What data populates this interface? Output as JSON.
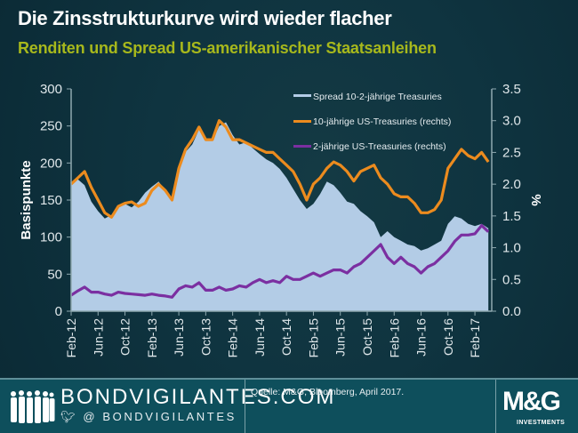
{
  "header": {
    "title": "Die Zinsstrukturkurve wird wieder flacher",
    "subtitle": "Renditen und Spread US-amerikanischer Staatsanleihen"
  },
  "colors": {
    "background": "#0d2f3a",
    "spread_fill": "#b3cce6",
    "ten_year": "#ec8b1e",
    "two_year": "#7b2fa1",
    "subtitle": "#a7b81c",
    "footer": "#0e4f5c"
  },
  "chart_data": {
    "type": "area",
    "title": "Die Zinsstrukturkurve wird wieder flacher",
    "subtitle": "Renditen und Spread US-amerikanischer Staatsanleihen",
    "xlabel": "",
    "ylabel": "Basispunkte",
    "y2label": "%",
    "ylim": [
      0,
      300
    ],
    "y2lim": [
      0,
      3.5
    ],
    "yticks": [
      "0",
      "50",
      "100",
      "150",
      "200",
      "250",
      "300"
    ],
    "y2ticks": [
      "0.0",
      "0.5",
      "1.0",
      "1.5",
      "2.0",
      "2.5",
      "3.0",
      "3.5"
    ],
    "xticks": [
      "Feb-12",
      "Jun-12",
      "Oct-12",
      "Feb-13",
      "Jun-13",
      "Oct-13",
      "Feb-14",
      "Jun-14",
      "Oct-14",
      "Feb-15",
      "Jun-15",
      "Oct-15",
      "Feb-16",
      "Jun-16",
      "Oct-16",
      "Feb-17"
    ],
    "x_range_months": [
      0,
      62.5
    ],
    "grid": false,
    "legend_position": "top-right",
    "x": [
      0,
      1,
      2,
      3,
      4,
      5,
      6,
      7,
      8,
      9,
      10,
      11,
      12,
      13,
      14,
      15,
      16,
      17,
      18,
      19,
      20,
      21,
      22,
      23,
      24,
      25,
      26,
      27,
      28,
      29,
      30,
      31,
      32,
      33,
      34,
      35,
      36,
      37,
      38,
      39,
      40,
      41,
      42,
      43,
      44,
      45,
      46,
      47,
      48,
      49,
      50,
      51,
      52,
      53,
      54,
      55,
      56,
      57,
      58,
      59,
      60,
      61,
      62
    ],
    "series": [
      {
        "name": "Spread 10-2-jährige Treasuries",
        "axis": "left",
        "unit": "bp",
        "style": "area",
        "values": [
          170,
          178,
          170,
          148,
          135,
          125,
          130,
          140,
          145,
          140,
          148,
          160,
          168,
          175,
          163,
          148,
          195,
          215,
          225,
          245,
          232,
          230,
          250,
          255,
          238,
          225,
          228,
          220,
          212,
          205,
          200,
          192,
          180,
          165,
          150,
          138,
          145,
          158,
          175,
          170,
          160,
          148,
          145,
          135,
          128,
          120,
          100,
          108,
          100,
          95,
          90,
          88,
          82,
          85,
          90,
          95,
          118,
          128,
          125,
          118,
          115,
          118,
          112
        ]
      },
      {
        "name": "10-jährige US-Treasuries (rechts)",
        "axis": "right",
        "unit": "%",
        "style": "line",
        "values": [
          2.0,
          2.1,
          2.2,
          1.95,
          1.75,
          1.55,
          1.48,
          1.65,
          1.7,
          1.72,
          1.65,
          1.7,
          1.9,
          2.0,
          1.9,
          1.75,
          2.25,
          2.55,
          2.7,
          2.9,
          2.7,
          2.7,
          3.0,
          2.9,
          2.7,
          2.7,
          2.65,
          2.6,
          2.55,
          2.5,
          2.5,
          2.4,
          2.3,
          2.2,
          2.0,
          1.75,
          2.0,
          2.1,
          2.25,
          2.35,
          2.3,
          2.2,
          2.05,
          2.2,
          2.25,
          2.3,
          2.1,
          2.0,
          1.85,
          1.8,
          1.8,
          1.7,
          1.55,
          1.55,
          1.6,
          1.75,
          2.25,
          2.4,
          2.55,
          2.45,
          2.4,
          2.5,
          2.35
        ]
      },
      {
        "name": "2-jährige US-Treasuries (rechts)",
        "axis": "right",
        "unit": "%",
        "style": "line",
        "values": [
          0.25,
          0.32,
          0.38,
          0.3,
          0.3,
          0.27,
          0.25,
          0.3,
          0.28,
          0.27,
          0.26,
          0.25,
          0.27,
          0.25,
          0.24,
          0.22,
          0.35,
          0.4,
          0.38,
          0.45,
          0.33,
          0.33,
          0.38,
          0.33,
          0.35,
          0.4,
          0.38,
          0.45,
          0.5,
          0.45,
          0.48,
          0.45,
          0.55,
          0.5,
          0.5,
          0.55,
          0.6,
          0.55,
          0.6,
          0.65,
          0.65,
          0.6,
          0.7,
          0.75,
          0.85,
          0.95,
          1.05,
          0.85,
          0.75,
          0.85,
          0.75,
          0.7,
          0.6,
          0.7,
          0.75,
          0.85,
          0.95,
          1.1,
          1.2,
          1.2,
          1.22,
          1.35,
          1.25
        ]
      }
    ]
  },
  "footer": {
    "brand": "BONDVIGILANTES.COM",
    "handle": "@ BONDVIGILANTES",
    "source": "Quelle: M&G,  Bloomberg, April 2017.",
    "logo_text": "M&G",
    "logo_sub": "INVESTMENTS"
  }
}
